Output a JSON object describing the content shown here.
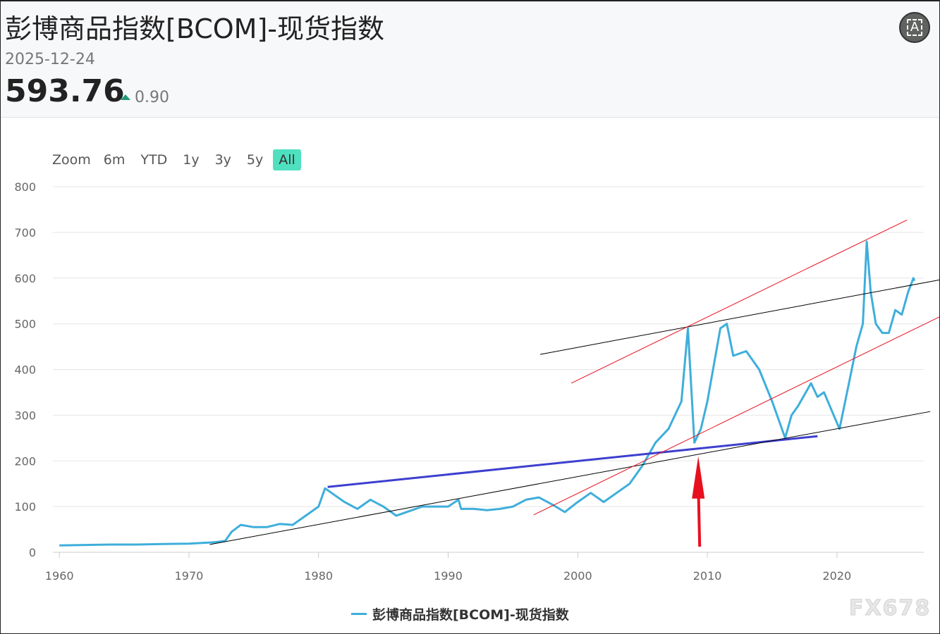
{
  "header": {
    "title": "彭博商品指数[BCOM]-现货指数",
    "date": "2025-12-24",
    "price": "593.76",
    "change": "0.90",
    "change_direction": "up",
    "change_color": "#1f9a7a",
    "icon": "font-size-a-icon"
  },
  "zoom": {
    "label": "Zoom",
    "buttons": [
      "6m",
      "YTD",
      "1y",
      "3y",
      "5y",
      "All"
    ],
    "active": "All"
  },
  "watermark": "FX678",
  "chart_data": {
    "type": "line",
    "title": "",
    "xlabel": "",
    "ylabel": "",
    "xlim": [
      1959.5,
      2026.7
    ],
    "ylim": [
      0,
      800
    ],
    "x_ticks": [
      "1960",
      "1970",
      "1980",
      "1990",
      "2000",
      "2010",
      "2020"
    ],
    "y_ticks": [
      "0",
      "100",
      "200",
      "300",
      "400",
      "500",
      "600",
      "700",
      "800"
    ],
    "grid": true,
    "legend_position": "bottom",
    "series": [
      {
        "name": "彭博商品指数[BCOM]-现货指数",
        "color": "#3eaedb",
        "x": [
          1960,
          1962,
          1964,
          1966,
          1968,
          1970,
          1972,
          1972.8,
          1973.3,
          1974,
          1975,
          1976,
          1977,
          1978,
          1979,
          1980,
          1980.5,
          1981,
          1982,
          1983,
          1984,
          1985,
          1986,
          1987,
          1988,
          1989,
          1990,
          1990.8,
          1991,
          1992,
          1993,
          1994,
          1995,
          1996,
          1997,
          1998,
          1999,
          2000,
          2001,
          2002,
          2003,
          2004,
          2005,
          2006,
          2007,
          2008,
          2008.5,
          2009,
          2009.5,
          2010,
          2011,
          2011.5,
          2012,
          2013,
          2014,
          2015,
          2016,
          2016.5,
          2017,
          2018,
          2018.5,
          2019,
          2020.2,
          2021,
          2021.5,
          2022,
          2022.3,
          2022.6,
          2023,
          2023.5,
          2024,
          2024.5,
          2025,
          2025.5,
          2025.9,
          2025.98
        ],
        "values": [
          15,
          16,
          17,
          17,
          18,
          19,
          22,
          25,
          45,
          60,
          55,
          55,
          62,
          60,
          80,
          100,
          140,
          130,
          110,
          95,
          115,
          100,
          80,
          90,
          100,
          100,
          100,
          115,
          95,
          95,
          92,
          95,
          100,
          115,
          120,
          105,
          88,
          110,
          130,
          110,
          130,
          150,
          190,
          240,
          270,
          330,
          490,
          240,
          270,
          330,
          490,
          500,
          430,
          440,
          400,
          330,
          250,
          300,
          320,
          370,
          340,
          350,
          270,
          380,
          450,
          500,
          680,
          570,
          500,
          480,
          480,
          530,
          520,
          570,
          600,
          594
        ]
      }
    ],
    "annotations": [
      {
        "kind": "line",
        "color": "#3d3fcf",
        "from": [
          1980.7,
          143
        ],
        "to": [
          2018.5,
          254
        ]
      },
      {
        "kind": "line",
        "color": "#000000",
        "from": [
          1971.6,
          17
        ],
        "to": [
          2027.2,
          308
        ]
      },
      {
        "kind": "line",
        "color": "#000000",
        "from": [
          1997.1,
          433
        ],
        "to": [
          2027.9,
          596
        ]
      },
      {
        "kind": "line",
        "color": "#e8101e",
        "from": [
          1999.5,
          370
        ],
        "to": [
          2025.4,
          727
        ]
      },
      {
        "kind": "line",
        "color": "#e8101e",
        "from": [
          1996.6,
          82
        ],
        "to": [
          2027.9,
          515
        ]
      },
      {
        "kind": "arrow",
        "color": "#e8101e",
        "from": [
          2009.3,
          6
        ],
        "to": [
          2009.3,
          210
        ]
      }
    ]
  }
}
